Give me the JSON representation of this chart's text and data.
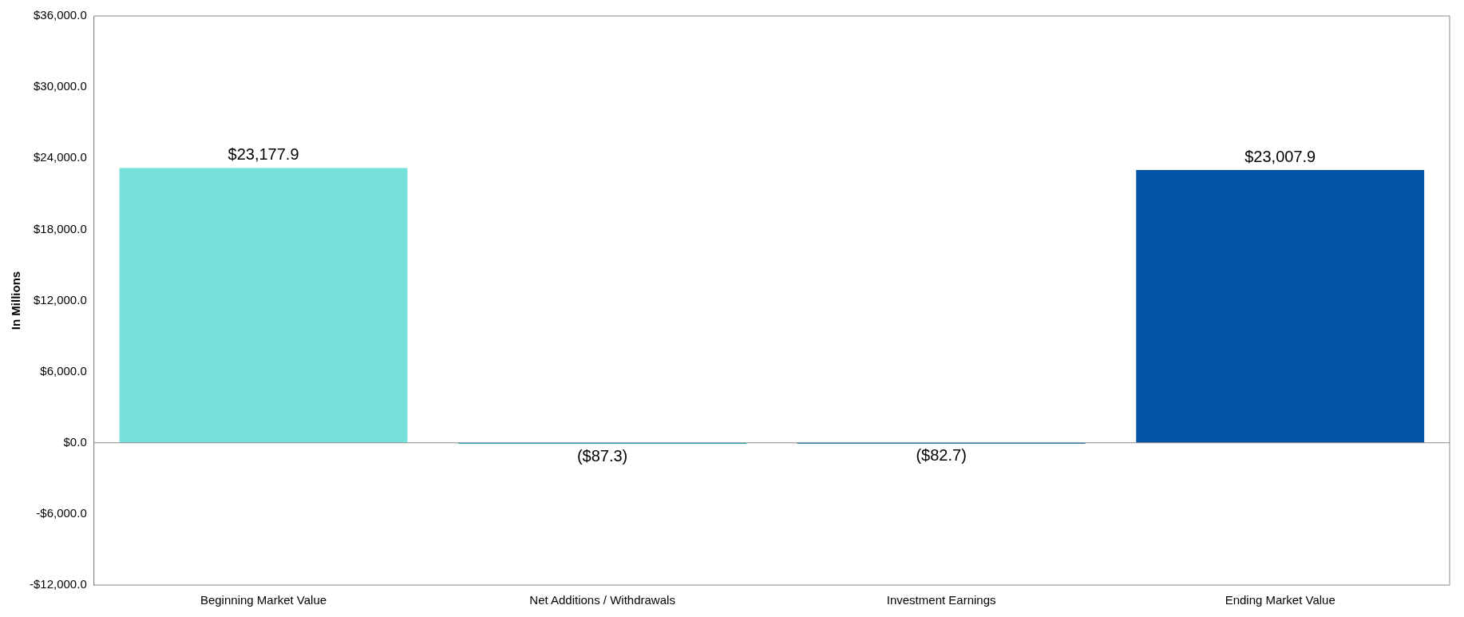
{
  "chart_data": {
    "type": "bar",
    "ylabel": "In Millions",
    "categories": [
      "Beginning Market Value",
      "Net Additions / Withdrawals",
      "Investment Earnings",
      "Ending Market Value"
    ],
    "values": [
      23177.9,
      -87.3,
      -82.7,
      23007.9
    ],
    "colors": [
      "#75e1da",
      "#1ba8c9",
      "#0e7fc1",
      "#0053a5"
    ],
    "value_labels": [
      "$23,177.9",
      "($87.3)",
      "($82.7)",
      "$23,007.9"
    ],
    "ylim": [
      -12000,
      36000
    ],
    "yticks": [
      {
        "value": -12000,
        "label": "-$12,000.0"
      },
      {
        "value": -6000,
        "label": "-$6,000.0"
      },
      {
        "value": 0,
        "label": "$0.0"
      },
      {
        "value": 6000,
        "label": "$6,000.0"
      },
      {
        "value": 12000,
        "label": "$12,000.0"
      },
      {
        "value": 18000,
        "label": "$18,000.0"
      },
      {
        "value": 24000,
        "label": "$24,000.0"
      },
      {
        "value": 30000,
        "label": "$30,000.0"
      },
      {
        "value": 36000,
        "label": "$36,000.0"
      }
    ]
  }
}
